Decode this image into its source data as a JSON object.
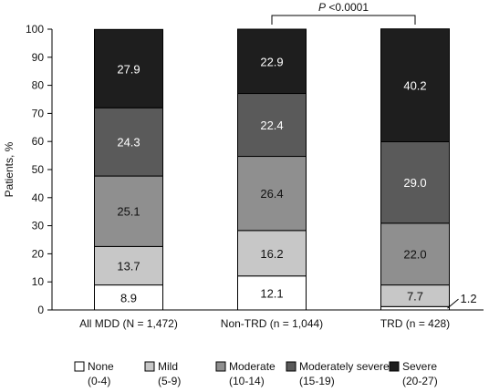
{
  "chart_data": {
    "type": "bar",
    "stacked": true,
    "categories": [
      "All MDD (N = 1,472)",
      "Non-TRD (n = 1,044)",
      "TRD (n = 428)"
    ],
    "series": [
      {
        "name": "None",
        "range": "(0-4)",
        "color": "#ffffff",
        "values": [
          8.9,
          12.1,
          1.2
        ],
        "labels": [
          "8.9",
          "12.1",
          "1.2"
        ]
      },
      {
        "name": "Mild",
        "range": "(5-9)",
        "color": "#c7c7c7",
        "values": [
          13.7,
          16.2,
          7.7
        ],
        "labels": [
          "13.7",
          "16.2",
          "7.7"
        ]
      },
      {
        "name": "Moderate",
        "range": "(10-14)",
        "color": "#8f8f8f",
        "values": [
          25.1,
          26.4,
          22.0
        ],
        "labels": [
          "25.1",
          "26.4",
          "22.0"
        ]
      },
      {
        "name": "Moderately severe",
        "range": "(15-19)",
        "color": "#5a5a5a",
        "values": [
          24.3,
          22.4,
          29.0
        ],
        "labels": [
          "24.3",
          "22.4",
          "29.0"
        ]
      },
      {
        "name": "Severe",
        "range": "(20-27)",
        "color": "#1e1e1e",
        "values": [
          27.9,
          22.9,
          40.2
        ],
        "labels": [
          "27.9",
          "22.9",
          "40.2"
        ]
      }
    ],
    "ylabel": "Patients, %",
    "xlabel": "",
    "ylim": [
      0,
      100
    ],
    "yticks": [
      0,
      10,
      20,
      30,
      40,
      50,
      60,
      70,
      80,
      90,
      100
    ],
    "grid": false,
    "legend": "bottom",
    "annotations": [
      {
        "text_italic": "P",
        "text": " <0.0001",
        "between": [
          "Non-TRD (n = 1,044)",
          "TRD (n = 428)"
        ]
      }
    ]
  }
}
